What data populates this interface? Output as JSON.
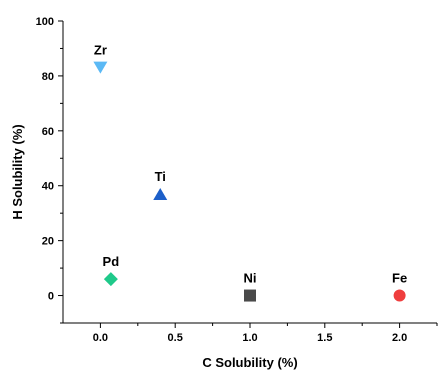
{
  "chart_data": {
    "type": "scatter",
    "xlabel": "C Solubility (%)",
    "ylabel": "H Solubility (%)",
    "xlim": [
      -0.25,
      2.25
    ],
    "ylim": [
      -10,
      100
    ],
    "xticks": [
      0.0,
      0.5,
      1.0,
      1.5,
      2.0
    ],
    "xtick_labels": [
      "0.0",
      "0.5",
      "1.0",
      "1.5",
      "2.0"
    ],
    "yticks": [
      0,
      20,
      40,
      60,
      80,
      100
    ],
    "ytick_labels": [
      "0",
      "20",
      "40",
      "60",
      "80",
      "100"
    ],
    "grid": false,
    "legend": "none",
    "points": [
      {
        "label": "Zr",
        "x": 0.0,
        "y": 83,
        "marker": "triangle-down",
        "color": "#5bb9f5"
      },
      {
        "label": "Ti",
        "x": 0.4,
        "y": 37,
        "marker": "triangle-up",
        "color": "#1c5fc9"
      },
      {
        "label": "Pd",
        "x": 0.07,
        "y": 6,
        "marker": "diamond",
        "color": "#1fc98a"
      },
      {
        "label": "Ni",
        "x": 1.0,
        "y": 0,
        "marker": "square",
        "color": "#4a4a4a"
      },
      {
        "label": "Fe",
        "x": 2.0,
        "y": 0,
        "marker": "circle",
        "color": "#ef3e3e"
      }
    ]
  }
}
